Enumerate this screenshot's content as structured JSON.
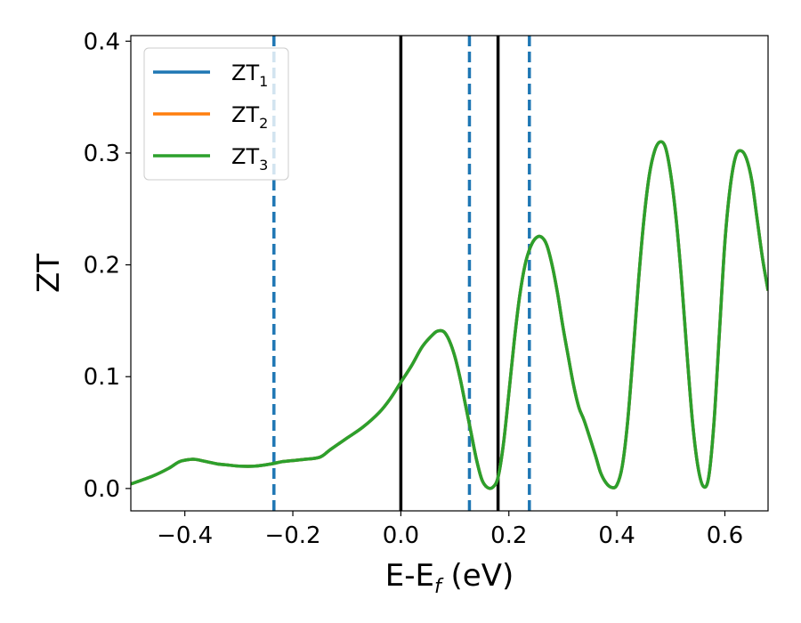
{
  "chart_data": {
    "type": "line",
    "xlabel": "E-E",
    "xlabel_sub": "f",
    "xlabel_unit": " (eV)",
    "ylabel": "ZT",
    "xlim": [
      -0.5,
      0.68
    ],
    "ylim": [
      -0.02,
      0.405
    ],
    "xticks": [
      -0.4,
      -0.2,
      0.0,
      0.2,
      0.4,
      0.6
    ],
    "xtick_labels": [
      "−0.4",
      "−0.2",
      "0.0",
      "0.2",
      "0.4",
      "0.6"
    ],
    "yticks": [
      0.0,
      0.1,
      0.2,
      0.3,
      0.4
    ],
    "ytick_labels": [
      "0.0",
      "0.1",
      "0.2",
      "0.3",
      "0.4"
    ],
    "grid": false,
    "legend_position": "top-left",
    "series": [
      {
        "name": "ZT",
        "sub": "1",
        "color": "#1f77b4"
      },
      {
        "name": "ZT",
        "sub": "2",
        "color": "#ff7f0e"
      },
      {
        "name": "ZT",
        "sub": "3",
        "color": "#2ca02c"
      }
    ],
    "x": [
      -0.5,
      -0.46,
      -0.43,
      -0.41,
      -0.39,
      -0.38,
      -0.36,
      -0.34,
      -0.32,
      -0.3,
      -0.27,
      -0.24,
      -0.22,
      -0.2,
      -0.18,
      -0.15,
      -0.13,
      -0.1,
      -0.07,
      -0.04,
      -0.02,
      0.0,
      0.02,
      0.04,
      0.06,
      0.07,
      0.08,
      0.09,
      0.1,
      0.11,
      0.12,
      0.13,
      0.14,
      0.15,
      0.16,
      0.17,
      0.18,
      0.19,
      0.2,
      0.21,
      0.22,
      0.23,
      0.24,
      0.25,
      0.26,
      0.27,
      0.28,
      0.29,
      0.3,
      0.31,
      0.32,
      0.33,
      0.34,
      0.36,
      0.37,
      0.38,
      0.39,
      0.4,
      0.41,
      0.42,
      0.43,
      0.44,
      0.45,
      0.46,
      0.47,
      0.48,
      0.49,
      0.5,
      0.51,
      0.52,
      0.53,
      0.54,
      0.55,
      0.56,
      0.57,
      0.58,
      0.59,
      0.6,
      0.61,
      0.62,
      0.63,
      0.64,
      0.65,
      0.66,
      0.67,
      0.68
    ],
    "y": [
      0.004,
      0.011,
      0.018,
      0.024,
      0.026,
      0.026,
      0.024,
      0.022,
      0.021,
      0.02,
      0.02,
      0.022,
      0.024,
      0.025,
      0.026,
      0.028,
      0.035,
      0.045,
      0.055,
      0.068,
      0.08,
      0.095,
      0.11,
      0.127,
      0.138,
      0.141,
      0.14,
      0.132,
      0.118,
      0.098,
      0.074,
      0.05,
      0.026,
      0.008,
      0.001,
      0.001,
      0.01,
      0.04,
      0.085,
      0.132,
      0.172,
      0.2,
      0.216,
      0.224,
      0.225,
      0.218,
      0.2,
      0.175,
      0.145,
      0.118,
      0.092,
      0.072,
      0.06,
      0.03,
      0.014,
      0.005,
      0.001,
      0.003,
      0.02,
      0.06,
      0.12,
      0.185,
      0.24,
      0.28,
      0.302,
      0.31,
      0.305,
      0.28,
      0.24,
      0.185,
      0.12,
      0.06,
      0.02,
      0.002,
      0.01,
      0.06,
      0.14,
      0.22,
      0.27,
      0.297,
      0.302,
      0.295,
      0.275,
      0.24,
      0.205,
      0.177
    ],
    "vlines_solid": [
      0.0,
      0.18
    ],
    "vlines_dashed": [
      -0.235,
      0.127,
      0.238
    ],
    "vline_solid_color": "#000000",
    "vline_dashed_color": "#1f77b4"
  }
}
